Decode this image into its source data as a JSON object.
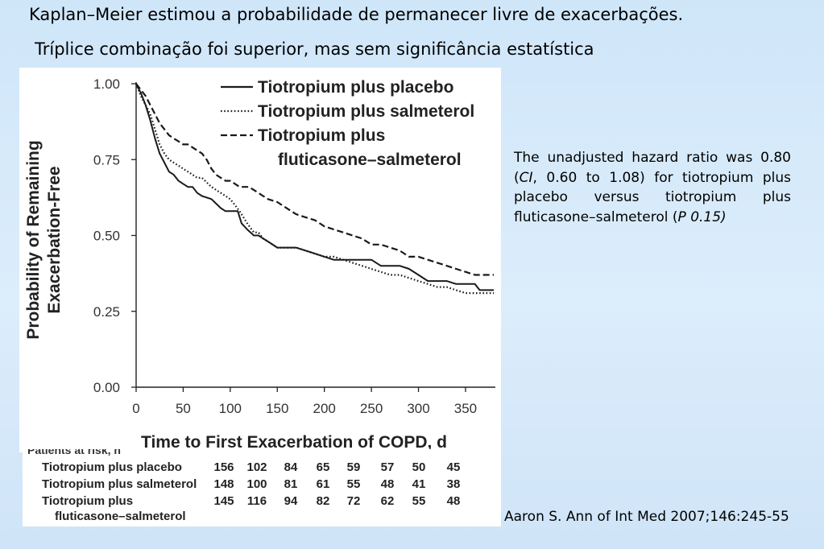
{
  "slide": {
    "title": "Kaplan–Meier estimou a  probabilidade de permanecer livre de exacerbações.",
    "subtitle": "Tríplice combinação foi superior, mas sem significância estatística",
    "note_parts": [
      "The unadjusted hazard ratio was 0.80 (",
      "CI",
      ", 0.60 to 1.08) for tiotropium plus placebo versus tiotropium plus fluticasone–salmeterol (",
      "P  0.15)"
    ],
    "citation": "Aaron S. Ann of Int Med 2007;146:245-55"
  },
  "risk_table": {
    "header": "Patients at risk, n",
    "rows": [
      {
        "label": "Tiotropium plus placebo",
        "values": [
          "156",
          "102",
          "84",
          "65",
          "59",
          "57",
          "50",
          "45"
        ]
      },
      {
        "label": "Tiotropium plus salmeterol",
        "values": [
          "148",
          "100",
          "81",
          "61",
          "55",
          "48",
          "41",
          "38"
        ]
      },
      {
        "label": "Tiotropium plus",
        "label2": "fluticasone–salmeterol",
        "values": [
          "145",
          "116",
          "94",
          "82",
          "72",
          "62",
          "55",
          "48"
        ]
      }
    ]
  },
  "chart_data": {
    "type": "line",
    "xlabel": "Time to First Exacerbation of COPD, d",
    "ylabel": [
      "Probability of Remaining",
      "Exacerbation-Free"
    ],
    "xlim": [
      0,
      380
    ],
    "ylim": [
      0,
      1
    ],
    "xticks": [
      "0",
      "50",
      "100",
      "150",
      "200",
      "250",
      "300",
      "350"
    ],
    "yticks": [
      "0.00",
      "0.25",
      "0.50",
      "0.75",
      "1.00"
    ],
    "legend_position": "top-right",
    "series": [
      {
        "name": "Tiotropium plus placebo",
        "style": "solid",
        "x": [
          0,
          5,
          10,
          15,
          20,
          25,
          30,
          35,
          40,
          45,
          50,
          55,
          60,
          65,
          70,
          80,
          90,
          95,
          100,
          108,
          112,
          118,
          125,
          130,
          135,
          140,
          150,
          160,
          170,
          180,
          190,
          200,
          210,
          220,
          230,
          240,
          250,
          260,
          270,
          280,
          290,
          300,
          310,
          320,
          330,
          340,
          350,
          360,
          365,
          370,
          380
        ],
        "y": [
          1.0,
          0.97,
          0.93,
          0.88,
          0.82,
          0.77,
          0.74,
          0.71,
          0.7,
          0.68,
          0.67,
          0.66,
          0.66,
          0.64,
          0.63,
          0.62,
          0.59,
          0.58,
          0.58,
          0.58,
          0.54,
          0.52,
          0.5,
          0.5,
          0.49,
          0.48,
          0.46,
          0.46,
          0.46,
          0.45,
          0.44,
          0.43,
          0.42,
          0.42,
          0.42,
          0.42,
          0.42,
          0.4,
          0.4,
          0.4,
          0.39,
          0.37,
          0.35,
          0.35,
          0.35,
          0.34,
          0.34,
          0.34,
          0.32,
          0.32,
          0.32
        ]
      },
      {
        "name": "Tiotropium plus salmeterol",
        "style": "dotted",
        "x": [
          0,
          5,
          10,
          15,
          20,
          25,
          30,
          35,
          40,
          45,
          50,
          55,
          60,
          65,
          70,
          80,
          90,
          100,
          105,
          110,
          118,
          125,
          130,
          135,
          140,
          150,
          160,
          170,
          180,
          190,
          200,
          210,
          220,
          230,
          240,
          250,
          260,
          270,
          280,
          290,
          300,
          310,
          320,
          330,
          340,
          350,
          360,
          380
        ],
        "y": [
          1.0,
          0.96,
          0.93,
          0.9,
          0.85,
          0.8,
          0.77,
          0.75,
          0.74,
          0.73,
          0.72,
          0.71,
          0.7,
          0.69,
          0.69,
          0.66,
          0.64,
          0.62,
          0.6,
          0.58,
          0.54,
          0.51,
          0.51,
          0.49,
          0.48,
          0.46,
          0.46,
          0.46,
          0.45,
          0.44,
          0.43,
          0.43,
          0.42,
          0.41,
          0.4,
          0.39,
          0.38,
          0.37,
          0.37,
          0.36,
          0.35,
          0.34,
          0.33,
          0.33,
          0.32,
          0.31,
          0.31,
          0.31
        ]
      },
      {
        "name": "Tiotropium plus fluticasone–salmeterol",
        "legend_lines": [
          "Tiotropium plus",
          "fluticasone–salmeterol"
        ],
        "style": "dashed",
        "x": [
          0,
          5,
          10,
          15,
          20,
          25,
          30,
          35,
          40,
          45,
          50,
          55,
          60,
          65,
          70,
          75,
          80,
          85,
          90,
          95,
          100,
          110,
          120,
          130,
          140,
          150,
          160,
          170,
          180,
          190,
          200,
          210,
          220,
          230,
          240,
          250,
          260,
          270,
          280,
          290,
          300,
          310,
          320,
          330,
          340,
          350,
          360,
          380
        ],
        "y": [
          1.0,
          0.98,
          0.96,
          0.93,
          0.9,
          0.87,
          0.85,
          0.83,
          0.82,
          0.81,
          0.8,
          0.8,
          0.79,
          0.78,
          0.77,
          0.75,
          0.72,
          0.7,
          0.69,
          0.68,
          0.68,
          0.66,
          0.66,
          0.64,
          0.62,
          0.61,
          0.59,
          0.57,
          0.56,
          0.55,
          0.53,
          0.52,
          0.51,
          0.5,
          0.49,
          0.47,
          0.47,
          0.46,
          0.45,
          0.43,
          0.43,
          0.42,
          0.41,
          0.4,
          0.39,
          0.38,
          0.37,
          0.37
        ]
      }
    ]
  }
}
